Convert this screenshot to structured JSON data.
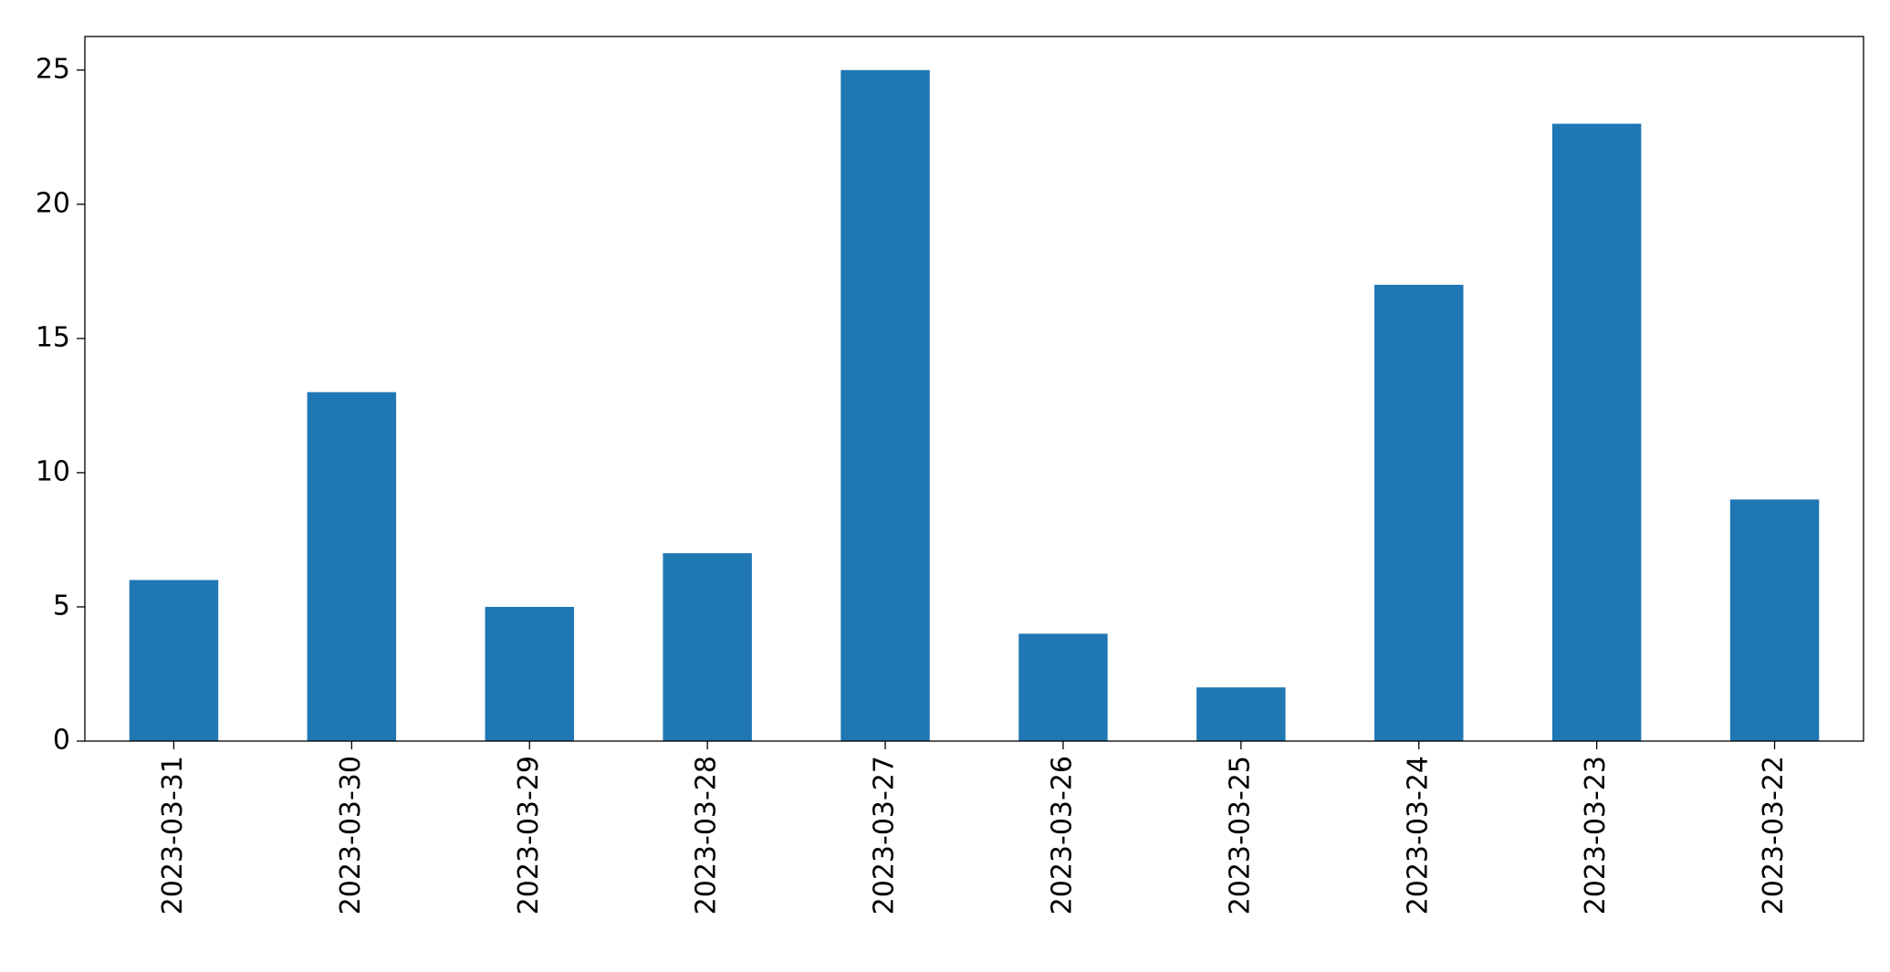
{
  "chart_data": {
    "type": "bar",
    "categories": [
      "2023-03-31",
      "2023-03-30",
      "2023-03-29",
      "2023-03-28",
      "2023-03-27",
      "2023-03-26",
      "2023-03-25",
      "2023-03-24",
      "2023-03-23",
      "2023-03-22"
    ],
    "values": [
      6,
      13,
      5,
      7,
      25,
      4,
      2,
      17,
      23,
      9
    ],
    "color": "#1f77b4",
    "ylim": [
      0,
      26.25
    ],
    "yticks": [
      0,
      5,
      10,
      15,
      20,
      25
    ],
    "grid": false
  }
}
